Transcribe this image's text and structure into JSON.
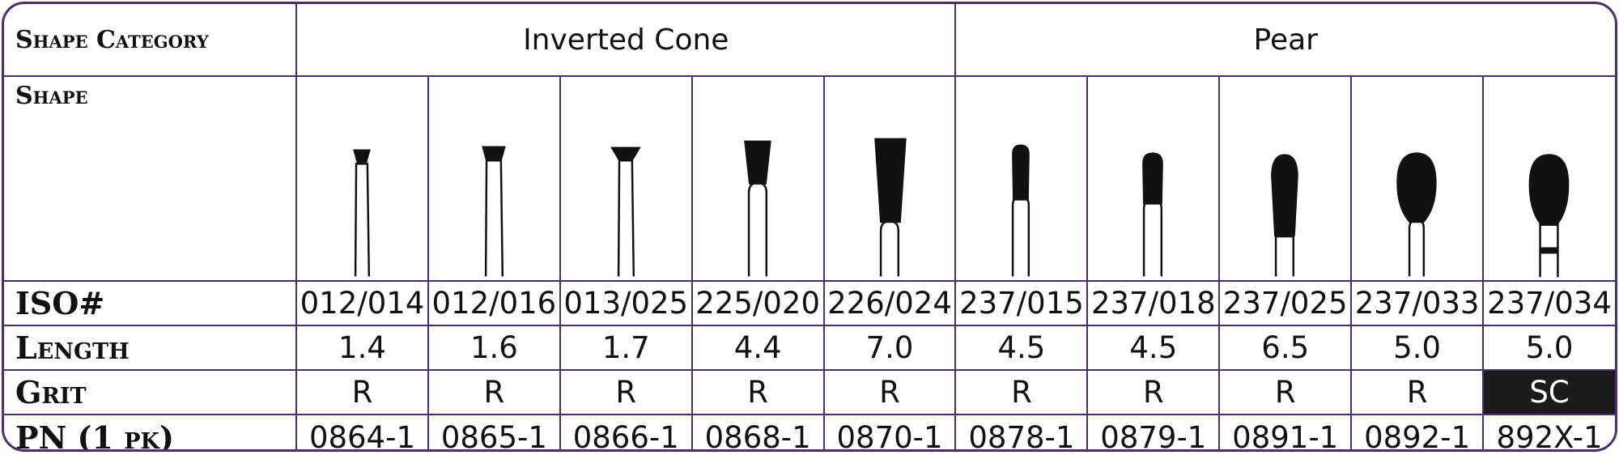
{
  "row_labels": {
    "shape_category": "Shape Category",
    "shape": "Shape",
    "iso": "ISO#",
    "length": "Length",
    "grit": "Grit",
    "pn": "PN (1 pk)"
  },
  "groups": [
    "Inverted Cone",
    "Pear"
  ],
  "products": [
    {
      "iso": "012/014",
      "length": "1.4",
      "grit": "R",
      "pn": "0864-1",
      "shape_icon": "inverted-cone-small-bur-icon"
    },
    {
      "iso": "012/016",
      "length": "1.6",
      "grit": "R",
      "pn": "0865-1",
      "shape_icon": "inverted-cone-small-bur-icon"
    },
    {
      "iso": "013/025",
      "length": "1.7",
      "grit": "R",
      "pn": "0866-1",
      "shape_icon": "inverted-cone-wide-bur-icon"
    },
    {
      "iso": "225/020",
      "length": "4.4",
      "grit": "R",
      "pn": "0868-1",
      "shape_icon": "inverted-cone-long-bur-icon"
    },
    {
      "iso": "226/024",
      "length": "7.0",
      "grit": "R",
      "pn": "0870-1",
      "shape_icon": "inverted-cone-large-bur-icon"
    },
    {
      "iso": "237/015",
      "length": "4.5",
      "grit": "R",
      "pn": "0878-1",
      "shape_icon": "pear-small-bur-icon"
    },
    {
      "iso": "237/018",
      "length": "4.5",
      "grit": "R",
      "pn": "0879-1",
      "shape_icon": "pear-medium-bur-icon"
    },
    {
      "iso": "237/025",
      "length": "6.5",
      "grit": "R",
      "pn": "0891-1",
      "shape_icon": "pear-long-bur-icon"
    },
    {
      "iso": "237/033",
      "length": "5.0",
      "grit": "R",
      "pn": "0892-1",
      "shape_icon": "pear-wide-bur-icon"
    },
    {
      "iso": "237/034",
      "length": "5.0",
      "grit": "SC",
      "pn": "892X-1",
      "shape_icon": "pear-wide-banded-bur-icon"
    }
  ],
  "colors": {
    "border": "#4b2e6e",
    "highlight_cell": "#1b1b1b"
  }
}
